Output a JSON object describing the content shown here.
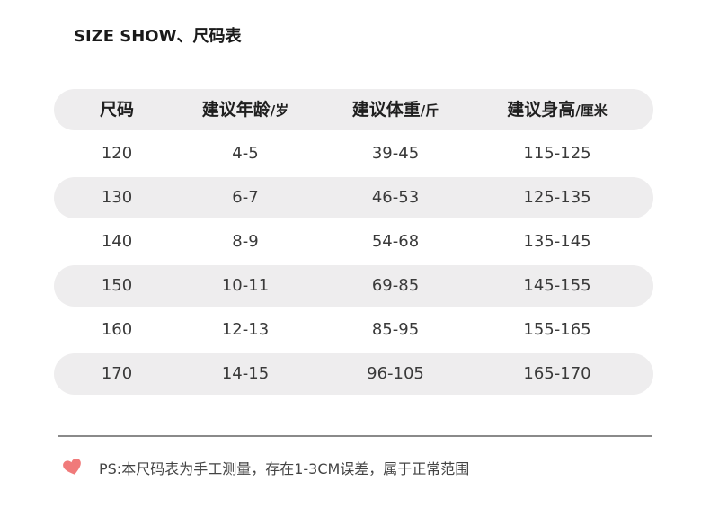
{
  "title": "SIZE SHOW、尺码表",
  "table": {
    "headers": [
      {
        "label": "尺码",
        "unit": ""
      },
      {
        "label": "建议年龄",
        "unit": "/岁"
      },
      {
        "label": "建议体重",
        "unit": "/斤"
      },
      {
        "label": "建议身高",
        "unit": "/厘米"
      }
    ],
    "rows": [
      [
        "120",
        "4-5",
        "39-45",
        "115-125"
      ],
      [
        "130",
        "6-7",
        "46-53",
        "125-135"
      ],
      [
        "140",
        "8-9",
        "54-68",
        "135-145"
      ],
      [
        "150",
        "10-11",
        "69-85",
        "145-155"
      ],
      [
        "160",
        "12-13",
        "85-95",
        "155-165"
      ],
      [
        "170",
        "14-15",
        "96-105",
        "165-170"
      ]
    ]
  },
  "note": {
    "icon": "heart-icon",
    "icon_color": "#f07a7a",
    "text": "PS:本尺码表为手工测量，存在1-3CM误差，属于正常范围"
  },
  "colors": {
    "row_shade": "#eeedee",
    "divider": "#8a8a8a"
  }
}
